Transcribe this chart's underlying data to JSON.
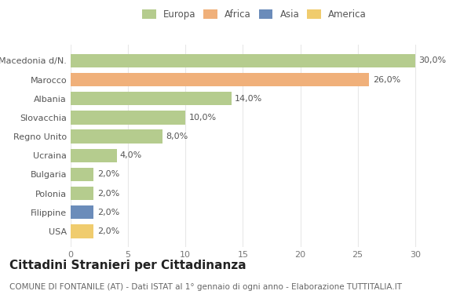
{
  "categories": [
    "Macedonia d/N.",
    "Marocco",
    "Albania",
    "Slovacchia",
    "Regno Unito",
    "Ucraina",
    "Bulgaria",
    "Polonia",
    "Filippine",
    "USA"
  ],
  "values": [
    30.0,
    26.0,
    14.0,
    10.0,
    8.0,
    4.0,
    2.0,
    2.0,
    2.0,
    2.0
  ],
  "colors": [
    "#b5cc8e",
    "#f0b07a",
    "#b5cc8e",
    "#b5cc8e",
    "#b5cc8e",
    "#b5cc8e",
    "#b5cc8e",
    "#b5cc8e",
    "#6b8cba",
    "#f0cc6e"
  ],
  "legend_labels": [
    "Europa",
    "Africa",
    "Asia",
    "America"
  ],
  "legend_colors": [
    "#b5cc8e",
    "#f0b07a",
    "#6b8cba",
    "#f0cc6e"
  ],
  "title": "Cittadini Stranieri per Cittadinanza",
  "subtitle": "COMUNE DI FONTANILE (AT) - Dati ISTAT al 1° gennaio di ogni anno - Elaborazione TUTTITALIA.IT",
  "xlim": [
    0,
    32
  ],
  "background_color": "#ffffff",
  "grid_color": "#e8e8e8",
  "bar_label_fontsize": 8,
  "title_fontsize": 11,
  "subtitle_fontsize": 7.5,
  "tick_fontsize": 8,
  "bar_height": 0.72
}
